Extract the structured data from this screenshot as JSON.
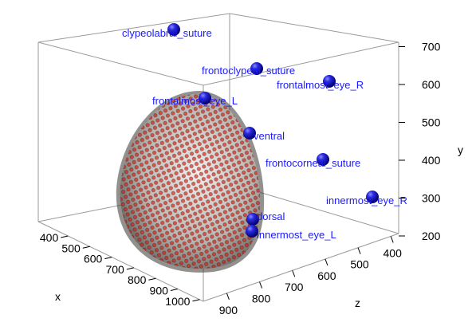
{
  "chart_data": {
    "type": "scatter",
    "x_axis": {
      "title": "x",
      "ticks": [
        "400",
        "500",
        "600",
        "700",
        "800",
        "900",
        "1000"
      ]
    },
    "y_axis": {
      "title": "y",
      "ticks": [
        "200",
        "300",
        "400",
        "500",
        "600",
        "700"
      ]
    },
    "z_axis": {
      "title": "z",
      "ticks": [
        "400",
        "500",
        "600",
        "700",
        "800",
        "900"
      ]
    },
    "landmarks": [
      {
        "label": "clypeolabral_suture"
      },
      {
        "label": "frontoclypeal_suture"
      },
      {
        "label": "frontalmost_eye_R"
      },
      {
        "label": "frontalmost_eye_L"
      },
      {
        "label": "ventral"
      },
      {
        "label": "frontocorneal_suture"
      },
      {
        "label": "innermost_eye_R"
      },
      {
        "label": "dorsal"
      },
      {
        "label": "innermost_eye_L"
      }
    ],
    "mesh": {
      "color": "#d6d0cc",
      "vertex_color": "#dd1a10"
    },
    "point_color": "#1010d0",
    "label_color": "#1a1aff",
    "box_color": "#9a9a9a"
  }
}
